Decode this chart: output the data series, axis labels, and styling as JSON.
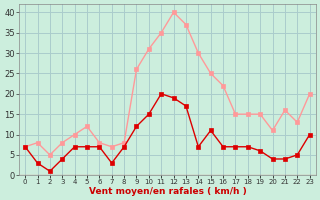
{
  "x": [
    0,
    1,
    2,
    3,
    4,
    5,
    6,
    7,
    8,
    9,
    10,
    11,
    12,
    13,
    14,
    15,
    16,
    17,
    18,
    19,
    20,
    21,
    22,
    23
  ],
  "wind_mean": [
    7,
    3,
    1,
    4,
    7,
    7,
    7,
    3,
    7,
    12,
    15,
    20,
    19,
    17,
    7,
    11,
    7,
    7,
    7,
    6,
    4,
    4,
    5,
    10
  ],
  "wind_gust": [
    7,
    8,
    5,
    8,
    10,
    12,
    8,
    7,
    8,
    26,
    31,
    35,
    40,
    37,
    30,
    25,
    22,
    15,
    15,
    15,
    11,
    16,
    13,
    20
  ],
  "mean_color": "#dd0000",
  "gust_color": "#ff9999",
  "bg_color": "#cceedd",
  "grid_color": "#aacccc",
  "xlabel": "Vent moyen/en rafales ( km/h )",
  "xlabel_color": "#cc0000",
  "yticks": [
    0,
    5,
    10,
    15,
    20,
    25,
    30,
    35,
    40
  ],
  "ylim": [
    0,
    42
  ],
  "xlim": [
    -0.5,
    23.5
  ]
}
